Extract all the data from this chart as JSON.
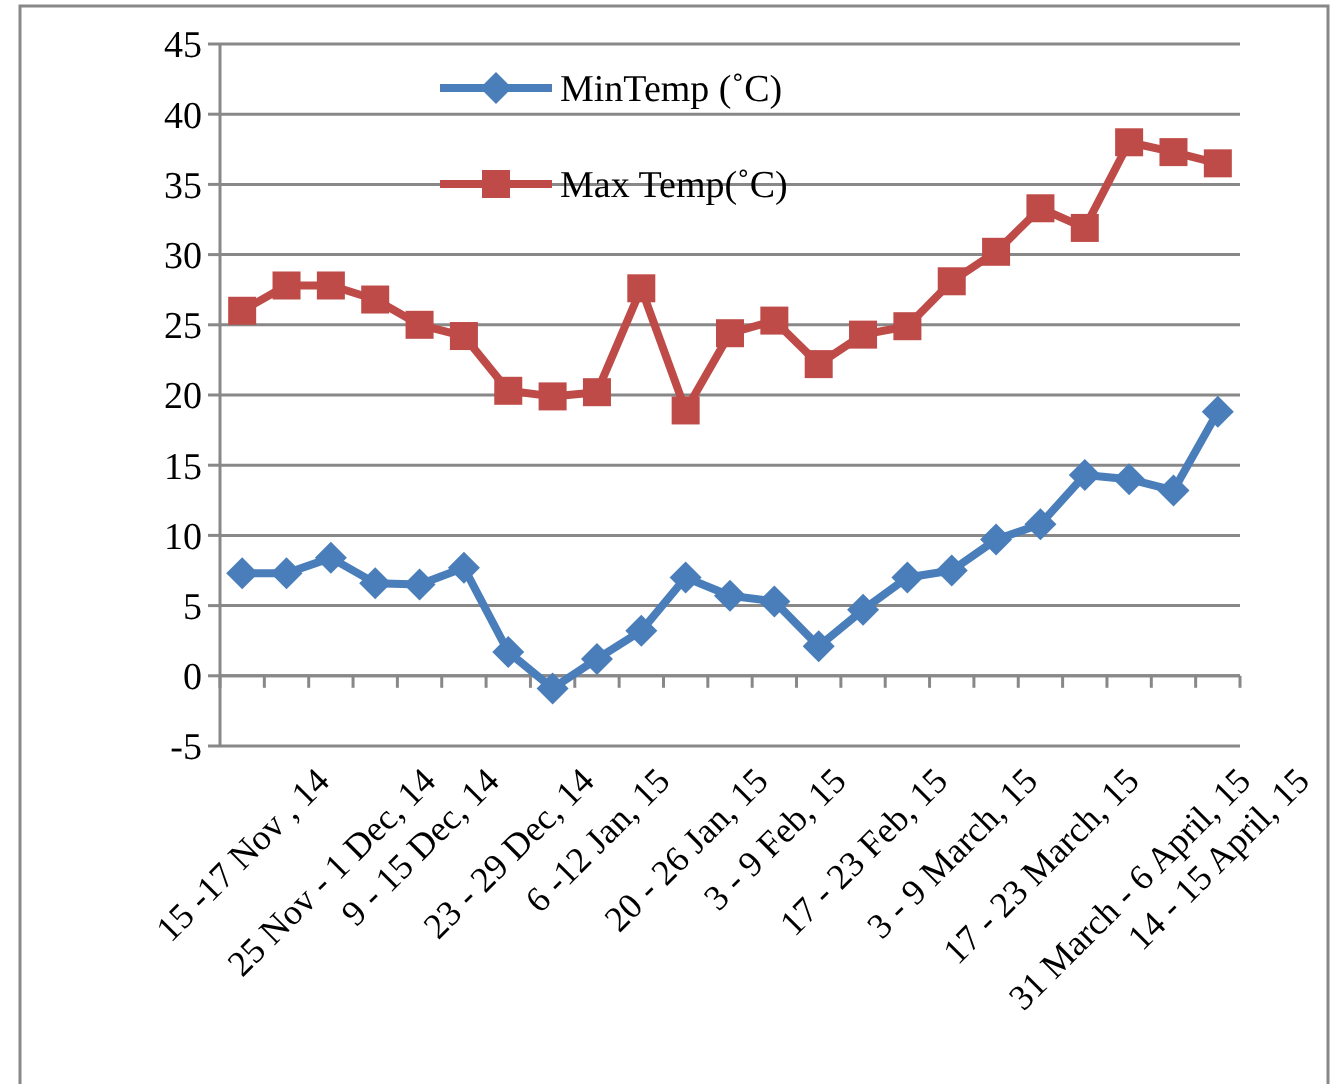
{
  "chart_data": {
    "type": "line",
    "categories": [
      "15 -17 Nov , 14",
      null,
      "25 Nov - 1 Dec, 14",
      null,
      "9 - 15 Dec, 14",
      null,
      "23 - 29 Dec, 14",
      null,
      "6 -12 Jan, 15",
      null,
      "20 - 26 Jan, 15",
      null,
      "3 - 9 Feb, 15",
      null,
      "17 - 23 Feb, 15",
      null,
      "3 - 9 March, 15",
      null,
      "17 - 23 March, 15",
      null,
      "31 March - 6 April, 15",
      null,
      "14 - 15 April, 15"
    ],
    "series": [
      {
        "name": "MinTemp (˚C)",
        "color": "#4a7ebb",
        "marker": "diamond",
        "values": [
          7.3,
          7.3,
          8.4,
          6.6,
          6.5,
          7.7,
          1.7,
          -0.9,
          1.2,
          3.2,
          7.0,
          5.7,
          5.3,
          2.1,
          4.7,
          7.0,
          7.5,
          9.7,
          10.8,
          14.3,
          14.0,
          13.2,
          18.8
        ]
      },
      {
        "name": "Max Temp(˚C)",
        "color": "#be4b48",
        "marker": "square",
        "values": [
          26.0,
          27.8,
          27.8,
          26.8,
          25.0,
          24.2,
          20.3,
          19.9,
          20.2,
          27.6,
          18.9,
          24.4,
          25.3,
          22.2,
          24.3,
          24.9,
          28.1,
          30.2,
          33.3,
          31.9,
          38.0,
          37.3,
          36.5
        ]
      }
    ],
    "ylim": [
      -5,
      45
    ],
    "yticks": [
      -5,
      0,
      5,
      10,
      15,
      20,
      25,
      30,
      35,
      40,
      45
    ],
    "grid": "y",
    "legend": "top"
  }
}
